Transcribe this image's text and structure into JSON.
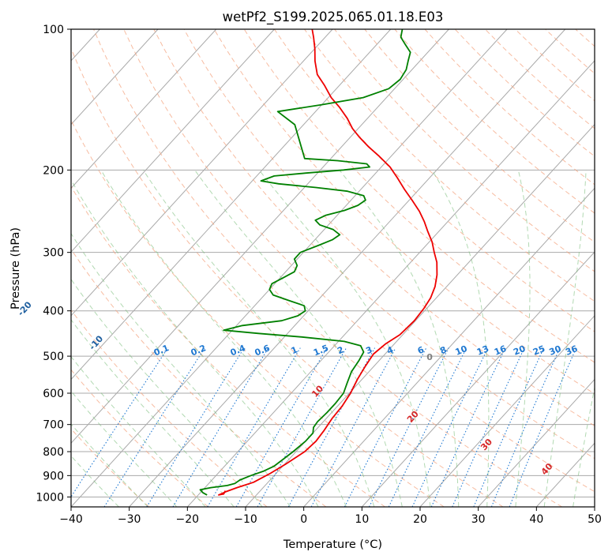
{
  "chart_data": {
    "type": "skewt",
    "title": "wetPf2_S199.2025.065.01.18.E03",
    "xlabel": "Temperature (°C)",
    "ylabel": "Pressure (hPa)",
    "xlim": [
      -40,
      50
    ],
    "ylim": [
      1050,
      100
    ],
    "x_ticks": [
      -40,
      -30,
      -20,
      -10,
      0,
      10,
      20,
      30,
      40,
      50
    ],
    "y_ticks": [
      100,
      200,
      300,
      400,
      500,
      600,
      700,
      800,
      900,
      1000
    ],
    "grid": true,
    "series": [
      {
        "role": "temperature",
        "color": "#ee0000",
        "points": [
          [
            -16.0,
            970
          ],
          [
            -15.8,
            985
          ],
          [
            -16.5,
            990
          ],
          [
            -15.8,
            975
          ],
          [
            -14.5,
            955
          ],
          [
            -12.5,
            930
          ],
          [
            -11.0,
            890
          ],
          [
            -9.8,
            850
          ],
          [
            -8.5,
            800
          ],
          [
            -8.2,
            760
          ],
          [
            -8.5,
            720
          ],
          [
            -9.0,
            680
          ],
          [
            -9.2,
            640
          ],
          [
            -9.8,
            600
          ],
          [
            -10.8,
            560
          ],
          [
            -11.5,
            525
          ],
          [
            -12.0,
            495
          ],
          [
            -11.5,
            470
          ],
          [
            -10.5,
            450
          ],
          [
            -10.2,
            420
          ],
          [
            -10.5,
            395
          ],
          [
            -11.0,
            375
          ],
          [
            -12.0,
            355
          ],
          [
            -13.5,
            335
          ],
          [
            -15.5,
            315
          ],
          [
            -17.5,
            300
          ],
          [
            -19.5,
            285
          ],
          [
            -22.0,
            270
          ],
          [
            -24.0,
            258
          ],
          [
            -26.5,
            245
          ],
          [
            -29.5,
            232
          ],
          [
            -32.5,
            220
          ],
          [
            -35.5,
            208
          ],
          [
            -38.5,
            197
          ],
          [
            -42.0,
            187
          ],
          [
            -45.5,
            178
          ],
          [
            -48.5,
            170
          ],
          [
            -51.0,
            163
          ],
          [
            -53.5,
            155
          ],
          [
            -56.5,
            147
          ],
          [
            -59.5,
            140
          ],
          [
            -62.5,
            132
          ],
          [
            -65.5,
            125
          ],
          [
            -68.0,
            117
          ],
          [
            -70.0,
            110
          ],
          [
            -72.0,
            104
          ],
          [
            -73.5,
            100
          ]
        ]
      },
      {
        "role": "dewpoint",
        "color": "#008000",
        "points": [
          [
            -18.5,
            990
          ],
          [
            -19.5,
            980
          ],
          [
            -20.5,
            965
          ],
          [
            -19.0,
            955
          ],
          [
            -16.5,
            945
          ],
          [
            -15.5,
            935
          ],
          [
            -15.2,
            920
          ],
          [
            -14.0,
            900
          ],
          [
            -12.5,
            880
          ],
          [
            -11.5,
            860
          ],
          [
            -11.0,
            830
          ],
          [
            -10.5,
            800
          ],
          [
            -10.0,
            760
          ],
          [
            -10.0,
            730
          ],
          [
            -10.8,
            710
          ],
          [
            -11.0,
            690
          ],
          [
            -10.8,
            660
          ],
          [
            -10.8,
            630
          ],
          [
            -11.0,
            600
          ],
          [
            -12.0,
            570
          ],
          [
            -13.0,
            540
          ],
          [
            -13.5,
            510
          ],
          [
            -14.0,
            490
          ],
          [
            -15.5,
            475
          ],
          [
            -19.0,
            465
          ],
          [
            -27.0,
            455
          ],
          [
            -35.0,
            447
          ],
          [
            -41.5,
            440
          ],
          [
            -39.0,
            430
          ],
          [
            -33.0,
            420
          ],
          [
            -31.0,
            410
          ],
          [
            -30.5,
            400
          ],
          [
            -31.5,
            390
          ],
          [
            -35.0,
            380
          ],
          [
            -38.5,
            370
          ],
          [
            -40.0,
            360
          ],
          [
            -40.5,
            350
          ],
          [
            -39.5,
            340
          ],
          [
            -38.5,
            330
          ],
          [
            -39.0,
            320
          ],
          [
            -40.5,
            310
          ],
          [
            -40.5,
            300
          ],
          [
            -38.5,
            290
          ],
          [
            -37.0,
            282
          ],
          [
            -36.5,
            275
          ],
          [
            -38.5,
            268
          ],
          [
            -41.5,
            262
          ],
          [
            -43.0,
            256
          ],
          [
            -42.0,
            250
          ],
          [
            -39.5,
            244
          ],
          [
            -38.0,
            238
          ],
          [
            -37.5,
            232
          ],
          [
            -38.5,
            227
          ],
          [
            -42.0,
            222
          ],
          [
            -48.0,
            218
          ],
          [
            -55.0,
            214
          ],
          [
            -58.5,
            211
          ],
          [
            -57.0,
            206
          ],
          [
            -52.0,
            203
          ],
          [
            -46.0,
            200
          ],
          [
            -42.0,
            197
          ],
          [
            -43.0,
            194
          ],
          [
            -48.5,
            191
          ],
          [
            -54.5,
            189
          ],
          [
            -61.5,
            160
          ],
          [
            -66.5,
            150
          ],
          [
            -60.0,
            145
          ],
          [
            -54.0,
            140
          ],
          [
            -51.0,
            134
          ],
          [
            -50.5,
            128
          ],
          [
            -51.0,
            122
          ],
          [
            -52.0,
            117
          ],
          [
            -53.0,
            112
          ],
          [
            -55.0,
            108
          ],
          [
            -57.0,
            104
          ],
          [
            -58.0,
            100
          ]
        ]
      }
    ],
    "dry_adiabats_C": [
      -100,
      -90,
      -80,
      -70,
      -60,
      -50,
      -40,
      -30,
      -20,
      -10
    ],
    "moist_adiabats_C": [
      0,
      10,
      20,
      30,
      40
    ],
    "mixing_ratio_g_per_kg": [
      "0.1",
      "0.2",
      "0.4",
      "0.6",
      "1",
      "1.5",
      "2",
      "3",
      "4",
      "6",
      "8",
      "10",
      "13",
      "16",
      "20",
      "25",
      "30",
      "36"
    ],
    "colors": {
      "dry_adiabat": "#f4a582",
      "moist_adiabat": "#7fbf7f",
      "mixing_ratio": "#1f78d1",
      "dry_label": "#1f5f9f",
      "moist_label": "#d62728",
      "isotherm_grid": "#a9a9a9",
      "zero_label": "#808080"
    }
  }
}
